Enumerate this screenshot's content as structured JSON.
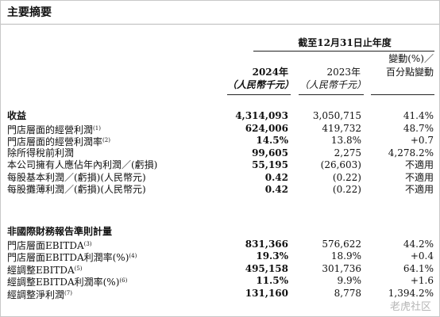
{
  "header": {
    "title": "主要摘要",
    "period": "截至12月31日止年度"
  },
  "columns": [
    {
      "year": "2024年",
      "unit": "（人民幣千元）"
    },
    {
      "year": "2023年",
      "unit": "（人民幣千元）"
    },
    {
      "line1": "變動(%)／",
      "line2": "百分點變動"
    }
  ],
  "sections": [
    {
      "rows": [
        {
          "label": "收益",
          "values": [
            "4,314,093",
            "3,050,715",
            "41.4%"
          ]
        },
        {
          "label": "門店層面的經營利潤",
          "note": "(1)",
          "values": [
            "624,006",
            "419,732",
            "48.7%"
          ]
        },
        {
          "label": "門店層面的經營利潤率",
          "note": "(2)",
          "values": [
            "14.5%",
            "13.8%",
            "+0.7"
          ]
        },
        {
          "label": "除所得稅前利潤",
          "values": [
            "99,605",
            "2,275",
            "4,278.2%"
          ]
        },
        {
          "label": "本公司擁有人應佔年內利潤／(虧損)",
          "values": [
            "55,195",
            "(26,603)",
            "不適用"
          ]
        },
        {
          "label": "每股基本利潤／(虧損)(人民幣元)",
          "values": [
            "0.42",
            "(0.22)",
            "不適用"
          ]
        },
        {
          "label": "每股攤薄利潤／(虧損)(人民幣元)",
          "values": [
            "0.42",
            "(0.22)",
            "不適用"
          ]
        }
      ]
    },
    {
      "title": "非國際財務報告準則計量",
      "rows": [
        {
          "label": "門店層面EBITDA",
          "note": "(3)",
          "values": [
            "831,366",
            "576,622",
            "44.2%"
          ]
        },
        {
          "label": "門店層面EBITDA利潤率(%)",
          "note": "(4)",
          "values": [
            "19.3%",
            "18.9%",
            "+0.4"
          ]
        },
        {
          "label": "經調整EBITDA",
          "note": "(5)",
          "values": [
            "495,158",
            "301,736",
            "64.1%"
          ]
        },
        {
          "label": "經調整EBITDA利潤率(%)",
          "note": "(6)",
          "values": [
            "11.5%",
            "9.9%",
            "+1.6"
          ]
        },
        {
          "label": "經調整淨利潤",
          "note": "(7)",
          "values": [
            "131,160",
            "8,778",
            "1,394.2%"
          ]
        }
      ]
    }
  ],
  "watermark": "老虎社区"
}
